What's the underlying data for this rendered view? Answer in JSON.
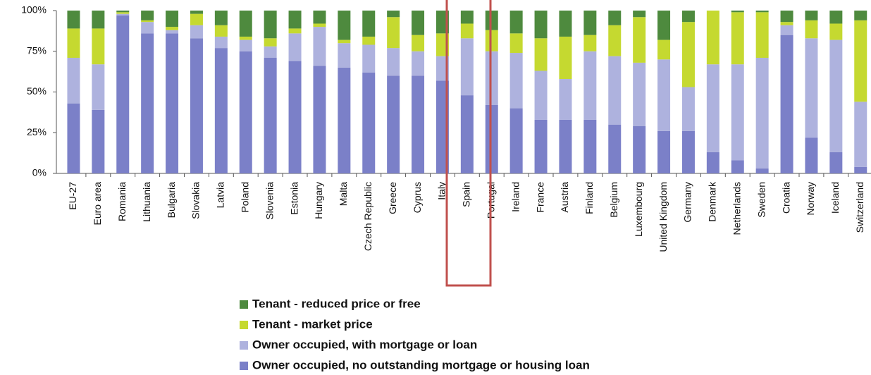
{
  "chart_data": {
    "type": "stacked_bar",
    "categories": [
      "EU-27",
      "Euro area",
      "Romania",
      "Lithuania",
      "Bulgaria",
      "Slovakia",
      "Latvia",
      "Poland",
      "Slovenia",
      "Estonia",
      "Hungary",
      "Malta",
      "Czech Republic",
      "Greece",
      "Cyprus",
      "Italy",
      "Spain",
      "Portugal",
      "Ireland",
      "France",
      "Austria",
      "Finland",
      "Belgium",
      "Luxembourg",
      "United Kingdom",
      "Germany",
      "Denmark",
      "Netherlands",
      "Sweden",
      "Croatia",
      "Norway",
      "Iceland",
      "Switzerland"
    ],
    "series": [
      {
        "name": "Owner occupied, no outstanding mortgage or housing loan",
        "color": "#7b80c8",
        "values": [
          43,
          39,
          97,
          86,
          86,
          83,
          77,
          75,
          71,
          69,
          66,
          65,
          62,
          60,
          60,
          57,
          48,
          42,
          40,
          33,
          33,
          33,
          30,
          29,
          26,
          26,
          13,
          8,
          3,
          85,
          22,
          13,
          4
        ]
      },
      {
        "name": "Owner occupied, with mortgage or loan",
        "color": "#aeb2de",
        "values": [
          28,
          28,
          1,
          7,
          2,
          8,
          7,
          7,
          7,
          17,
          24,
          15,
          17,
          17,
          15,
          15,
          35,
          33,
          34,
          30,
          25,
          42,
          42,
          39,
          44,
          27,
          54,
          59,
          68,
          6,
          61,
          69,
          40
        ]
      },
      {
        "name": "Tenant - market price",
        "color": "#c5d930",
        "values": [
          18,
          22,
          1,
          1,
          2,
          7,
          7,
          2,
          5,
          3,
          2,
          2,
          5,
          19,
          10,
          14,
          9,
          13,
          12,
          20,
          26,
          10,
          19,
          28,
          12,
          40,
          33,
          32,
          28,
          2,
          11,
          10,
          50
        ]
      },
      {
        "name": "Tenant - reduced price or free",
        "color": "#4e8a3e",
        "values": [
          11,
          11,
          1,
          6,
          10,
          2,
          9,
          16,
          17,
          11,
          8,
          18,
          16,
          4,
          15,
          14,
          8,
          12,
          14,
          17,
          16,
          15,
          9,
          4,
          18,
          7,
          0,
          1,
          1,
          7,
          6,
          8,
          6
        ]
      }
    ],
    "ylim": [
      0,
      100
    ],
    "yticks": [
      {
        "value": 0,
        "label": "0%"
      },
      {
        "value": 25,
        "label": "25%"
      },
      {
        "value": 50,
        "label": "50%"
      },
      {
        "value": 75,
        "label": "75%"
      },
      {
        "value": 100,
        "label": "100%"
      }
    ]
  }
}
